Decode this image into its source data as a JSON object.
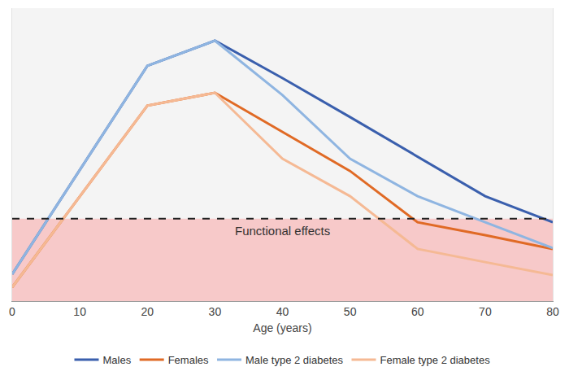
{
  "chart_data": {
    "type": "line",
    "x_label": "Age (years)",
    "x": [
      0,
      20,
      30,
      40,
      50,
      60,
      70,
      80
    ],
    "series": [
      {
        "name": "Males",
        "color": "#3a5fad",
        "values": [
          9.2,
          80.3,
          88.9,
          76.1,
          62.8,
          49.4,
          35.8,
          26.9
        ]
      },
      {
        "name": "Females",
        "color": "#e06a25",
        "values": [
          4.7,
          66.7,
          71.1,
          57.8,
          44.4,
          26.9,
          22.5,
          17.8
        ]
      },
      {
        "name": "Male type 2 diabetes",
        "color": "#8fb5e1",
        "values": [
          9.2,
          80.3,
          88.9,
          70.3,
          48.6,
          35.8,
          26.9,
          18.1
        ]
      },
      {
        "name": "Female type 2 diabetes",
        "color": "#f5b994",
        "values": [
          4.7,
          66.7,
          71.1,
          48.6,
          35.8,
          17.8,
          13.3,
          8.9
        ]
      }
    ],
    "reference_line": {
      "value": 28.1,
      "label": "Functional effects",
      "color": "#f7c9c9"
    },
    "xlim": [
      0,
      80
    ],
    "xticks": [
      0,
      10,
      20,
      30,
      40,
      50,
      60,
      70,
      80
    ],
    "ylim": [
      0,
      100
    ],
    "yticks": [],
    "tick_labels": "x",
    "grid": false,
    "legend": "bottom"
  }
}
